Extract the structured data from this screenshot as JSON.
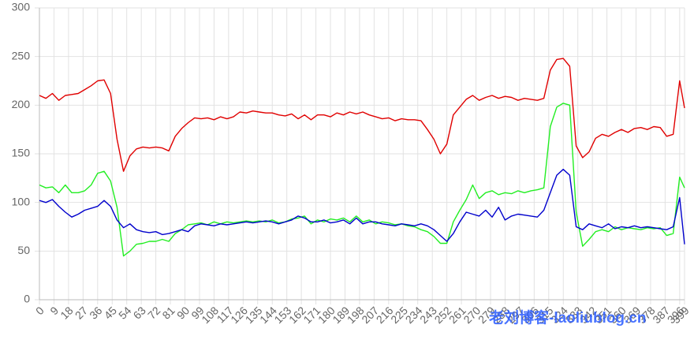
{
  "chart_data": {
    "type": "line",
    "watermark": "老刘博客-laoliublog.cn",
    "x": [
      0,
      4,
      8,
      12,
      16,
      20,
      24,
      28,
      32,
      36,
      40,
      44,
      48,
      52,
      56,
      60,
      64,
      68,
      72,
      76,
      80,
      84,
      88,
      92,
      96,
      100,
      104,
      108,
      112,
      116,
      120,
      124,
      128,
      132,
      136,
      140,
      144,
      148,
      152,
      156,
      160,
      164,
      168,
      172,
      176,
      180,
      184,
      188,
      192,
      196,
      200,
      204,
      208,
      212,
      216,
      220,
      224,
      228,
      232,
      236,
      240,
      244,
      248,
      252,
      256,
      260,
      264,
      268,
      272,
      276,
      280,
      284,
      288,
      292,
      296,
      300,
      304,
      308,
      312,
      316,
      320,
      324,
      328,
      332,
      336,
      340,
      344,
      348,
      352,
      356,
      360,
      364,
      368,
      372,
      376,
      380,
      384,
      388,
      392,
      396,
      399
    ],
    "series": [
      {
        "color": "#e00000",
        "values": [
          210,
          207,
          212,
          205,
          210,
          211,
          212,
          216,
          220,
          225,
          226,
          212,
          165,
          132,
          148,
          155,
          157,
          156,
          157,
          156,
          153,
          168,
          176,
          182,
          187,
          186,
          187,
          185,
          188,
          186,
          188,
          193,
          192,
          194,
          193,
          192,
          192,
          190,
          189,
          191,
          186,
          190,
          185,
          190,
          190,
          188,
          192,
          190,
          193,
          191,
          193,
          190,
          188,
          186,
          187,
          184,
          186,
          185,
          185,
          184,
          175,
          165,
          150,
          160,
          190,
          198,
          206,
          210,
          205,
          208,
          210,
          207,
          209,
          208,
          205,
          207,
          206,
          205,
          207,
          236,
          247,
          248,
          240,
          158,
          146,
          152,
          166,
          170,
          168,
          172,
          175,
          172,
          176,
          177,
          175,
          178,
          177,
          168,
          170,
          225,
          197
        ]
      },
      {
        "color": "#22ee22",
        "values": [
          118,
          115,
          116,
          110,
          118,
          110,
          110,
          112,
          118,
          130,
          132,
          122,
          95,
          45,
          50,
          57,
          58,
          60,
          60,
          62,
          60,
          68,
          72,
          77,
          78,
          79,
          77,
          80,
          78,
          80,
          79,
          80,
          81,
          80,
          81,
          80,
          82,
          79,
          80,
          83,
          84,
          86,
          78,
          82,
          80,
          83,
          82,
          84,
          80,
          86,
          80,
          82,
          78,
          80,
          79,
          77,
          78,
          76,
          75,
          72,
          70,
          65,
          58,
          58,
          80,
          92,
          103,
          118,
          104,
          110,
          112,
          108,
          110,
          109,
          112,
          110,
          112,
          113,
          115,
          178,
          198,
          202,
          200,
          90,
          55,
          62,
          70,
          72,
          70,
          75,
          72,
          74,
          73,
          72,
          74,
          73,
          74,
          66,
          68,
          126,
          115
        ]
      },
      {
        "color": "#0000cc",
        "values": [
          102,
          100,
          103,
          96,
          90,
          85,
          88,
          92,
          94,
          96,
          102,
          96,
          82,
          74,
          78,
          72,
          70,
          69,
          70,
          67,
          68,
          70,
          72,
          70,
          76,
          78,
          77,
          76,
          78,
          77,
          78,
          79,
          80,
          79,
          80,
          81,
          80,
          78,
          80,
          82,
          86,
          84,
          80,
          80,
          82,
          79,
          80,
          82,
          78,
          84,
          78,
          80,
          80,
          78,
          77,
          76,
          78,
          77,
          76,
          78,
          76,
          72,
          66,
          60,
          68,
          80,
          90,
          88,
          86,
          92,
          85,
          95,
          82,
          86,
          88,
          87,
          86,
          85,
          92,
          110,
          128,
          134,
          128,
          75,
          72,
          78,
          76,
          74,
          78,
          73,
          75,
          74,
          76,
          74,
          75,
          74,
          73,
          72,
          75,
          105,
          57
        ]
      }
    ],
    "xlim": [
      0,
      399
    ],
    "xticks": [
      0,
      9,
      18,
      27,
      36,
      45,
      54,
      63,
      72,
      81,
      90,
      99,
      108,
      117,
      126,
      135,
      144,
      153,
      162,
      171,
      180,
      189,
      198,
      207,
      216,
      225,
      234,
      243,
      252,
      261,
      270,
      279,
      288,
      297,
      306,
      315,
      324,
      333,
      342,
      351,
      360,
      369,
      378,
      387,
      396,
      399
    ],
    "ylim": [
      0,
      300
    ],
    "yticks": [
      0,
      50,
      100,
      150,
      200,
      250,
      300
    ],
    "grid": true
  }
}
